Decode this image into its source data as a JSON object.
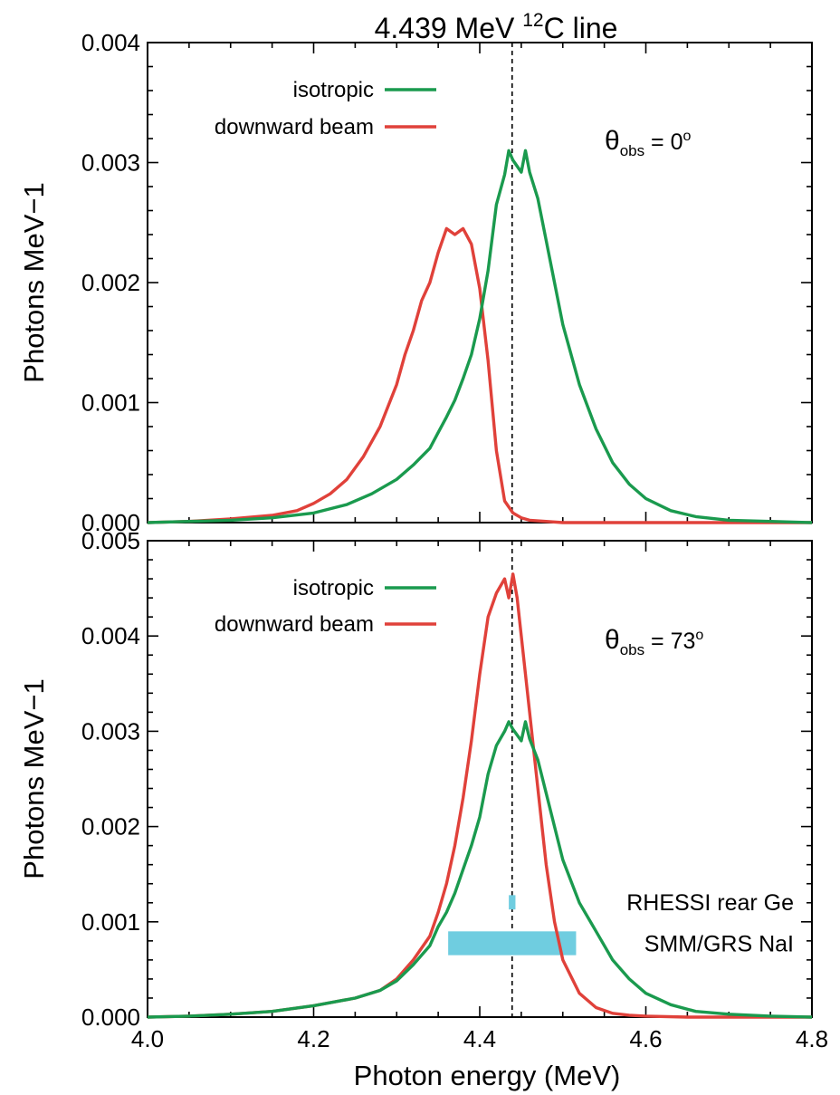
{
  "title_main": "4.439 MeV ",
  "title_sup": "12",
  "title_end": "C line",
  "xlabel": "Photon energy (MeV)",
  "colors": {
    "isotropic": "#1a9a4e",
    "beam": "#e0413a",
    "detector": "#6fcde0"
  },
  "chart_data": [
    {
      "type": "line",
      "title": "4.439 MeV 12C line",
      "ylabel": "Photons MeV−1",
      "xlim": [
        4.0,
        4.8
      ],
      "ylim": [
        0,
        0.004
      ],
      "xticks": [
        "4.0",
        "4.2",
        "4.4",
        "4.6",
        "4.8"
      ],
      "yticks": [
        "0.000",
        "0.001",
        "0.002",
        "0.003",
        "0.004"
      ],
      "annotation": {
        "symbol": "θ",
        "sub": "obs",
        "text": " = 0",
        "sup": "o"
      },
      "reference_line_x": 4.439,
      "legend": {
        "position": "top-left",
        "labels": [
          "isotropic",
          "downward beam"
        ]
      },
      "series": [
        {
          "name": "isotropic",
          "color_key": "isotropic",
          "x": [
            4.0,
            4.05,
            4.1,
            4.15,
            4.2,
            4.24,
            4.27,
            4.3,
            4.32,
            4.34,
            4.35,
            4.36,
            4.37,
            4.38,
            4.39,
            4.4,
            4.41,
            4.42,
            4.43,
            4.435,
            4.44,
            4.45,
            4.455,
            4.46,
            4.47,
            4.48,
            4.49,
            4.5,
            4.52,
            4.54,
            4.56,
            4.58,
            4.6,
            4.63,
            4.66,
            4.7,
            4.75,
            4.8
          ],
          "y": [
            0.0,
            1e-05,
            2e-05,
            4e-05,
            8e-05,
            0.00015,
            0.00024,
            0.00036,
            0.00048,
            0.00062,
            0.00075,
            0.00088,
            0.00102,
            0.0012,
            0.0014,
            0.0017,
            0.0021,
            0.00265,
            0.0029,
            0.0031,
            0.00302,
            0.00292,
            0.0031,
            0.00292,
            0.0027,
            0.00235,
            0.002,
            0.00165,
            0.00115,
            0.00078,
            0.0005,
            0.00032,
            0.0002,
            0.0001,
            5e-05,
            2e-05,
            1e-05,
            0.0
          ]
        },
        {
          "name": "downward beam",
          "color_key": "beam",
          "x": [
            4.0,
            4.05,
            4.1,
            4.15,
            4.18,
            4.2,
            4.22,
            4.24,
            4.26,
            4.28,
            4.3,
            4.31,
            4.32,
            4.33,
            4.34,
            4.35,
            4.36,
            4.37,
            4.38,
            4.39,
            4.4,
            4.41,
            4.42,
            4.43,
            4.44,
            4.45,
            4.46,
            4.48,
            4.5,
            4.55,
            4.6,
            4.7,
            4.8
          ],
          "y": [
            0.0,
            1e-05,
            3e-05,
            6e-05,
            0.0001,
            0.00016,
            0.00024,
            0.00036,
            0.00055,
            0.0008,
            0.00115,
            0.0014,
            0.0016,
            0.00185,
            0.002,
            0.00225,
            0.00245,
            0.0024,
            0.00245,
            0.00232,
            0.00195,
            0.00135,
            0.0006,
            0.00018,
            8e-05,
            4e-05,
            2e-05,
            1e-05,
            0.0,
            0.0,
            0.0,
            0.0,
            0.0
          ]
        }
      ]
    },
    {
      "type": "line",
      "ylabel": "Photons MeV−1",
      "xlabel": "Photon energy (MeV)",
      "xlim": [
        4.0,
        4.8
      ],
      "ylim": [
        0,
        0.005
      ],
      "xticks": [
        "4.0",
        "4.2",
        "4.4",
        "4.6",
        "4.8"
      ],
      "yticks": [
        "0.000",
        "0.001",
        "0.002",
        "0.003",
        "0.004",
        "0.005"
      ],
      "annotation": {
        "symbol": "θ",
        "sub": "obs",
        "text": " = 73",
        "sup": "o"
      },
      "reference_line_x": 4.439,
      "legend": {
        "position": "top-left",
        "labels": [
          "isotropic",
          "downward beam"
        ]
      },
      "series": [
        {
          "name": "isotropic",
          "color_key": "isotropic",
          "x": [
            4.0,
            4.05,
            4.1,
            4.15,
            4.2,
            4.25,
            4.28,
            4.3,
            4.32,
            4.34,
            4.35,
            4.36,
            4.37,
            4.38,
            4.39,
            4.4,
            4.41,
            4.42,
            4.43,
            4.435,
            4.44,
            4.45,
            4.455,
            4.46,
            4.47,
            4.48,
            4.49,
            4.5,
            4.52,
            4.54,
            4.56,
            4.58,
            4.6,
            4.63,
            4.66,
            4.7,
            4.75,
            4.8
          ],
          "y": [
            0.0,
            1e-05,
            3e-05,
            6e-05,
            0.00012,
            0.0002,
            0.00028,
            0.00038,
            0.00055,
            0.00075,
            0.00095,
            0.0011,
            0.0013,
            0.00155,
            0.0018,
            0.0021,
            0.00255,
            0.00285,
            0.003,
            0.0031,
            0.00302,
            0.0029,
            0.0031,
            0.00292,
            0.0027,
            0.00235,
            0.002,
            0.00165,
            0.0012,
            0.0009,
            0.0006,
            0.0004,
            0.00025,
            0.00013,
            6e-05,
            3e-05,
            1e-05,
            0.0
          ]
        },
        {
          "name": "downward beam",
          "color_key": "beam",
          "x": [
            4.0,
            4.05,
            4.1,
            4.15,
            4.2,
            4.25,
            4.28,
            4.3,
            4.32,
            4.34,
            4.35,
            4.36,
            4.37,
            4.38,
            4.39,
            4.4,
            4.41,
            4.42,
            4.43,
            4.435,
            4.44,
            4.445,
            4.45,
            4.46,
            4.47,
            4.48,
            4.49,
            4.5,
            4.52,
            4.54,
            4.56,
            4.58,
            4.6,
            4.65,
            4.7,
            4.8
          ],
          "y": [
            0.0,
            1e-05,
            3e-05,
            6e-05,
            0.00012,
            0.0002,
            0.00028,
            0.0004,
            0.0006,
            0.00085,
            0.0011,
            0.0014,
            0.0018,
            0.0023,
            0.0029,
            0.0036,
            0.0042,
            0.00445,
            0.0046,
            0.0044,
            0.00465,
            0.0044,
            0.004,
            0.0032,
            0.0024,
            0.0016,
            0.001,
            0.0006,
            0.00025,
            0.0001,
            4e-05,
            2e-05,
            1e-05,
            0.0,
            0.0,
            0.0
          ]
        }
      ],
      "detectors": [
        {
          "label": "RHESSI rear Ge",
          "x_range": [
            4.435,
            4.443
          ],
          "y_range": [
            0.00113,
            0.00128
          ]
        },
        {
          "label": "SMM/GRS NaI",
          "x_range": [
            4.362,
            4.516
          ],
          "y_range": [
            0.00065,
            0.0009
          ]
        }
      ]
    }
  ]
}
